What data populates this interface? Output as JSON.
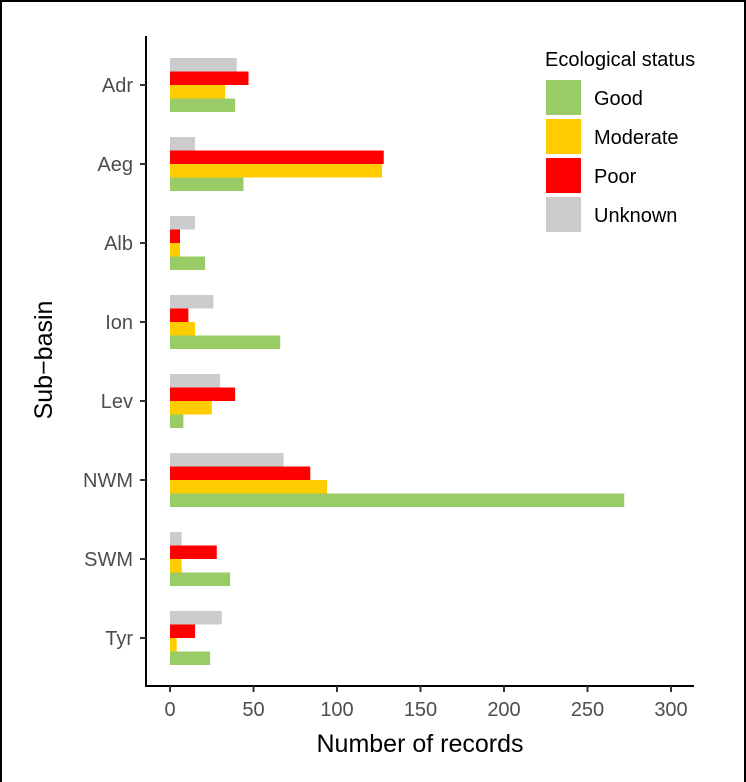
{
  "chart_data": {
    "type": "bar",
    "orientation": "horizontal",
    "xlabel": "Number of records",
    "ylabel": "Sub−basin",
    "xlim": [
      0,
      310
    ],
    "x_ticks": [
      "0",
      "50",
      "100",
      "150",
      "200",
      "250",
      "300"
    ],
    "x_tick_values": [
      0,
      50,
      100,
      150,
      200,
      250,
      300
    ],
    "categories": [
      "Adr",
      "Aeg",
      "Alb",
      "Ion",
      "Lev",
      "NWM",
      "SWM",
      "Tyr"
    ],
    "legend": {
      "title": "Ecological status",
      "placement": "top-right"
    },
    "series": [
      {
        "name": "Good",
        "color": "#99cc66",
        "values": [
          39,
          44,
          21,
          66,
          8,
          272,
          36,
          24
        ]
      },
      {
        "name": "Moderate",
        "color": "#ffcc00",
        "values": [
          33,
          127,
          6,
          15,
          25,
          94,
          7,
          4
        ]
      },
      {
        "name": "Poor",
        "color": "#ff0000",
        "values": [
          47,
          128,
          6,
          11,
          39,
          84,
          28,
          15
        ]
      },
      {
        "name": "Unknown",
        "color": "#cccccc",
        "values": [
          40,
          15,
          15,
          26,
          30,
          68,
          7,
          31
        ]
      }
    ],
    "grid": false
  }
}
